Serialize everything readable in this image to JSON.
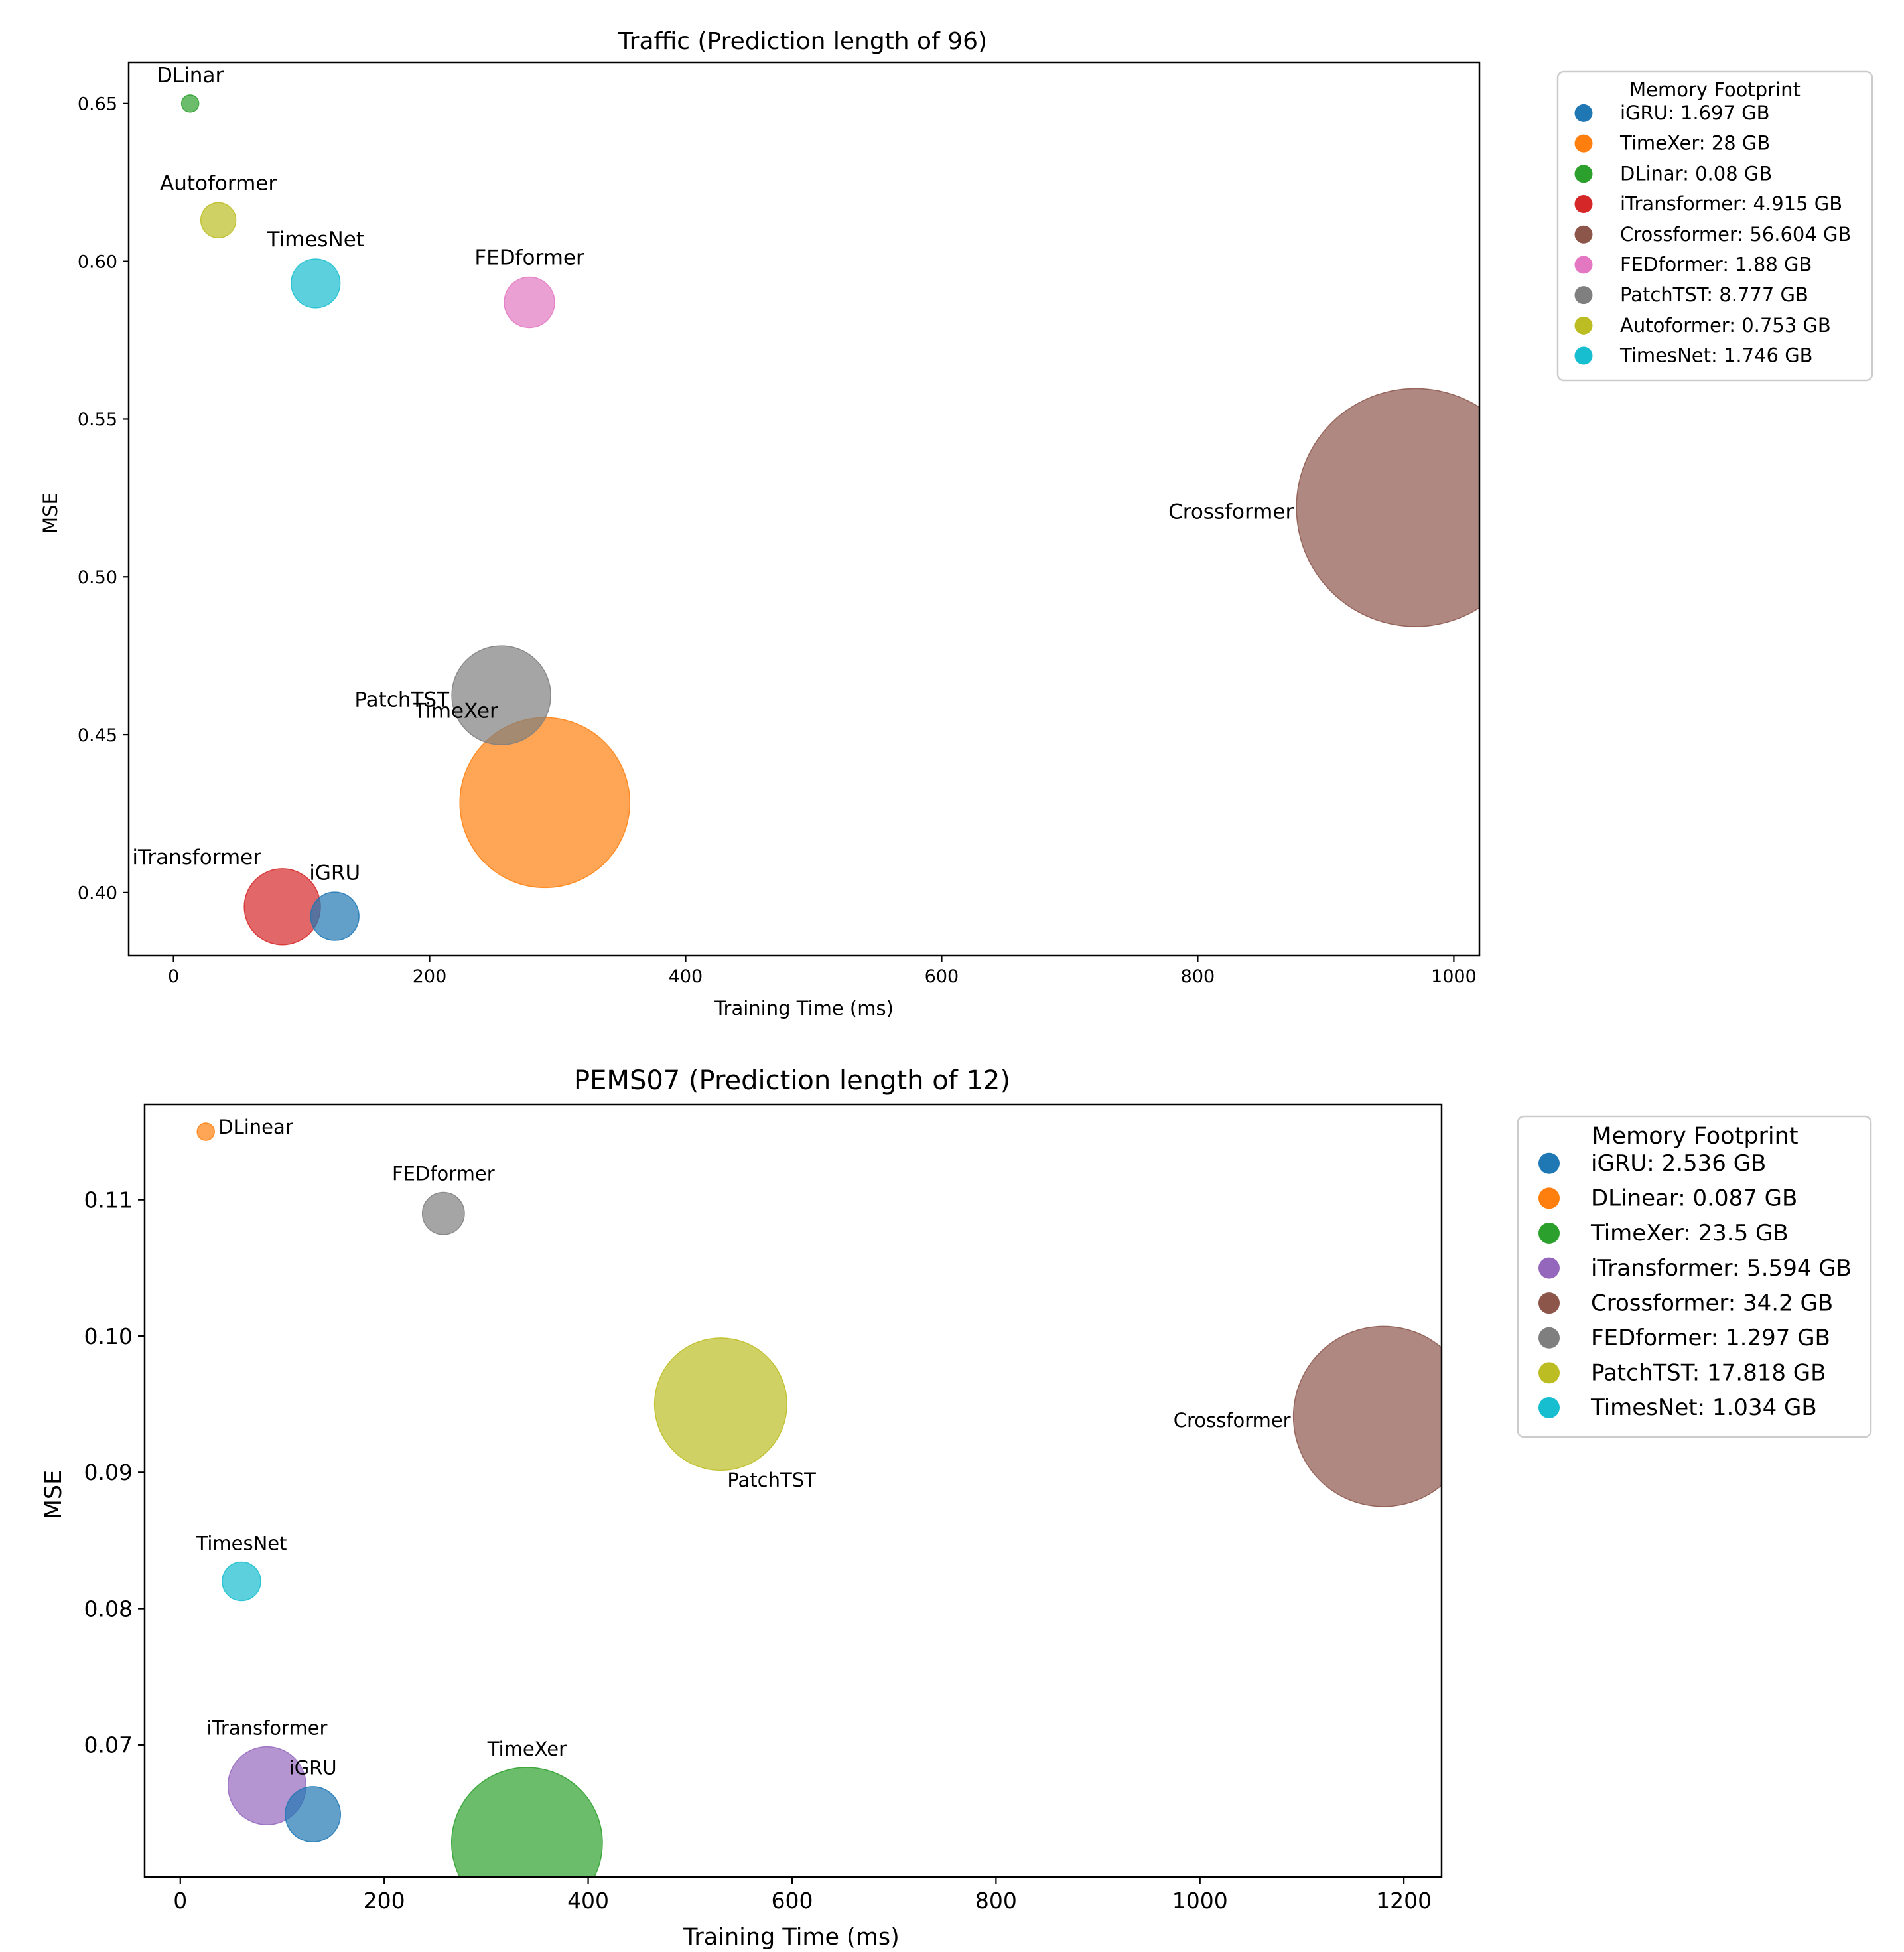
{
  "chart_data": [
    {
      "type": "scatter",
      "variant": "bubble",
      "title": "Traffic (Prediction length of 96)",
      "xlabel": "Training Time (ms)",
      "ylabel": "MSE",
      "xlim": [
        -35,
        1020
      ],
      "ylim": [
        0.38,
        0.663
      ],
      "xticks": [
        0,
        200,
        400,
        600,
        800,
        1000
      ],
      "yticks": [
        0.4,
        0.45,
        0.5,
        0.55,
        0.6,
        0.65
      ],
      "xtick_labels": [
        "0",
        "200",
        "400",
        "600",
        "800",
        "1000"
      ],
      "ytick_labels": [
        "0.40",
        "0.45",
        "0.50",
        "0.55",
        "0.60",
        "0.65"
      ],
      "grid": false,
      "legend_title": "Memory Footprint",
      "legend_position": "outside-right",
      "points": [
        {
          "name": "iGRU",
          "x": 126,
          "y": 0.3925,
          "memory_gb": 1.697,
          "color": "#1f77b4",
          "legend": "iGRU: 1.697 GB",
          "label_pos": "above"
        },
        {
          "name": "TimeXer",
          "x": 290,
          "y": 0.4285,
          "memory_gb": 28,
          "color": "#ff7f0e",
          "legend": "TimeXer: 28 GB",
          "label_pos": "upper-left"
        },
        {
          "name": "DLinar",
          "x": 13,
          "y": 0.65,
          "memory_gb": 0.08,
          "color": "#2ca02c",
          "legend": "DLinar: 0.08 GB",
          "label_pos": "above"
        },
        {
          "name": "iTransformer",
          "x": 85,
          "y": 0.3955,
          "memory_gb": 4.915,
          "color": "#d62728",
          "legend": "iTransformer: 4.915 GB",
          "label_pos": "upper-left"
        },
        {
          "name": "Crossformer",
          "x": 970,
          "y": 0.522,
          "memory_gb": 56.604,
          "color": "#8c564b",
          "legend": "Crossformer: 56.604 GB",
          "label_pos": "left"
        },
        {
          "name": "FEDformer",
          "x": 278,
          "y": 0.587,
          "memory_gb": 1.88,
          "color": "#e377c2",
          "legend": "FEDformer: 1.88 GB",
          "label_pos": "above"
        },
        {
          "name": "PatchTST",
          "x": 256,
          "y": 0.4625,
          "memory_gb": 8.777,
          "color": "#7f7f7f",
          "legend": "PatchTST: 8.777 GB",
          "label_pos": "left"
        },
        {
          "name": "Autoformer",
          "x": 35,
          "y": 0.613,
          "memory_gb": 0.753,
          "color": "#bcbd22",
          "legend": "Autoformer: 0.753 GB",
          "label_pos": "above"
        },
        {
          "name": "TimesNet",
          "x": 111,
          "y": 0.593,
          "memory_gb": 1.746,
          "color": "#17becf",
          "legend": "TimesNet: 1.746 GB",
          "label_pos": "above"
        }
      ]
    },
    {
      "type": "scatter",
      "variant": "bubble",
      "title": "PEMS07 (Prediction length of 12)",
      "xlabel": "Training Time (ms)",
      "ylabel": "MSE",
      "xlim": [
        -35,
        1237
      ],
      "ylim": [
        0.0603,
        0.117
      ],
      "xticks": [
        0,
        200,
        400,
        600,
        800,
        1000,
        1200
      ],
      "yticks": [
        0.07,
        0.08,
        0.09,
        0.1,
        0.11
      ],
      "xtick_labels": [
        "0",
        "200",
        "400",
        "600",
        "800",
        "1000",
        "1200"
      ],
      "ytick_labels": [
        "0.07",
        "0.08",
        "0.09",
        "0.10",
        "0.11"
      ],
      "grid": false,
      "legend_title": "Memory Footprint",
      "legend_position": "outside-right",
      "points": [
        {
          "name": "iGRU",
          "x": 130,
          "y": 0.0649,
          "memory_gb": 2.536,
          "color": "#1f77b4",
          "legend": "iGRU: 2.536 GB",
          "label_pos": "above"
        },
        {
          "name": "DLinear",
          "x": 25,
          "y": 0.115,
          "memory_gb": 0.087,
          "color": "#ff7f0e",
          "legend": "DLinear: 0.087 GB",
          "label_pos": "right"
        },
        {
          "name": "TimeXer",
          "x": 340,
          "y": 0.0628,
          "memory_gb": 23.5,
          "color": "#2ca02c",
          "legend": "TimeXer: 23.5 GB",
          "label_pos": "above"
        },
        {
          "name": "iTransformer",
          "x": 85,
          "y": 0.067,
          "memory_gb": 5.594,
          "color": "#9467bd",
          "legend": "iTransformer: 5.594 GB",
          "label_pos": "above"
        },
        {
          "name": "Crossformer",
          "x": 1180,
          "y": 0.0941,
          "memory_gb": 34.2,
          "color": "#8c564b",
          "legend": "Crossformer: 34.2 GB",
          "label_pos": "left"
        },
        {
          "name": "FEDformer",
          "x": 258,
          "y": 0.109,
          "memory_gb": 1.297,
          "color": "#7f7f7f",
          "legend": "FEDformer: 1.297 GB",
          "label_pos": "above"
        },
        {
          "name": "PatchTST",
          "x": 530,
          "y": 0.095,
          "memory_gb": 17.818,
          "color": "#bcbd22",
          "legend": "PatchTST: 17.818 GB",
          "label_pos": "lower-right"
        },
        {
          "name": "TimesNet",
          "x": 60,
          "y": 0.082,
          "memory_gb": 1.034,
          "color": "#17becf",
          "legend": "TimesNet: 1.034 GB",
          "label_pos": "above"
        }
      ]
    }
  ]
}
